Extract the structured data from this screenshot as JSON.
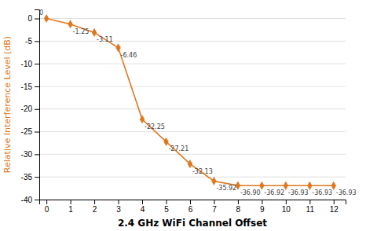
{
  "chart_data": {
    "type": "line",
    "x": [
      0,
      1,
      2,
      3,
      4,
      5,
      6,
      7,
      8,
      9,
      10,
      11,
      12
    ],
    "values": [
      0,
      -1.25,
      -3.11,
      -6.46,
      -22.25,
      -27.21,
      -32.13,
      -35.92,
      -36.9,
      -36.92,
      -36.93,
      -36.93,
      -36.93
    ],
    "value_labels": [
      "0",
      "-1.25",
      "-3.11",
      "-6.46",
      "-22.25",
      "-27.21",
      "-32.13",
      "-35.92",
      "-36.90",
      "-36.92",
      "-36.93",
      "-36.93",
      "-36.93"
    ],
    "color": "#E07820",
    "marker": "diamond",
    "xlabel": "2.4 GHz WiFi Channel Offset",
    "ylabel": "Relative Interference Level (dB)",
    "xlim": [
      -0.3,
      12.5
    ],
    "ylim": [
      -40,
      2
    ],
    "xticks": [
      0,
      1,
      2,
      3,
      4,
      5,
      6,
      7,
      8,
      9,
      10,
      11,
      12
    ],
    "yticks": [
      0,
      -5,
      -10,
      -15,
      -20,
      -25,
      -30,
      -35,
      -40
    ],
    "grid": "y",
    "data_labels": true
  }
}
